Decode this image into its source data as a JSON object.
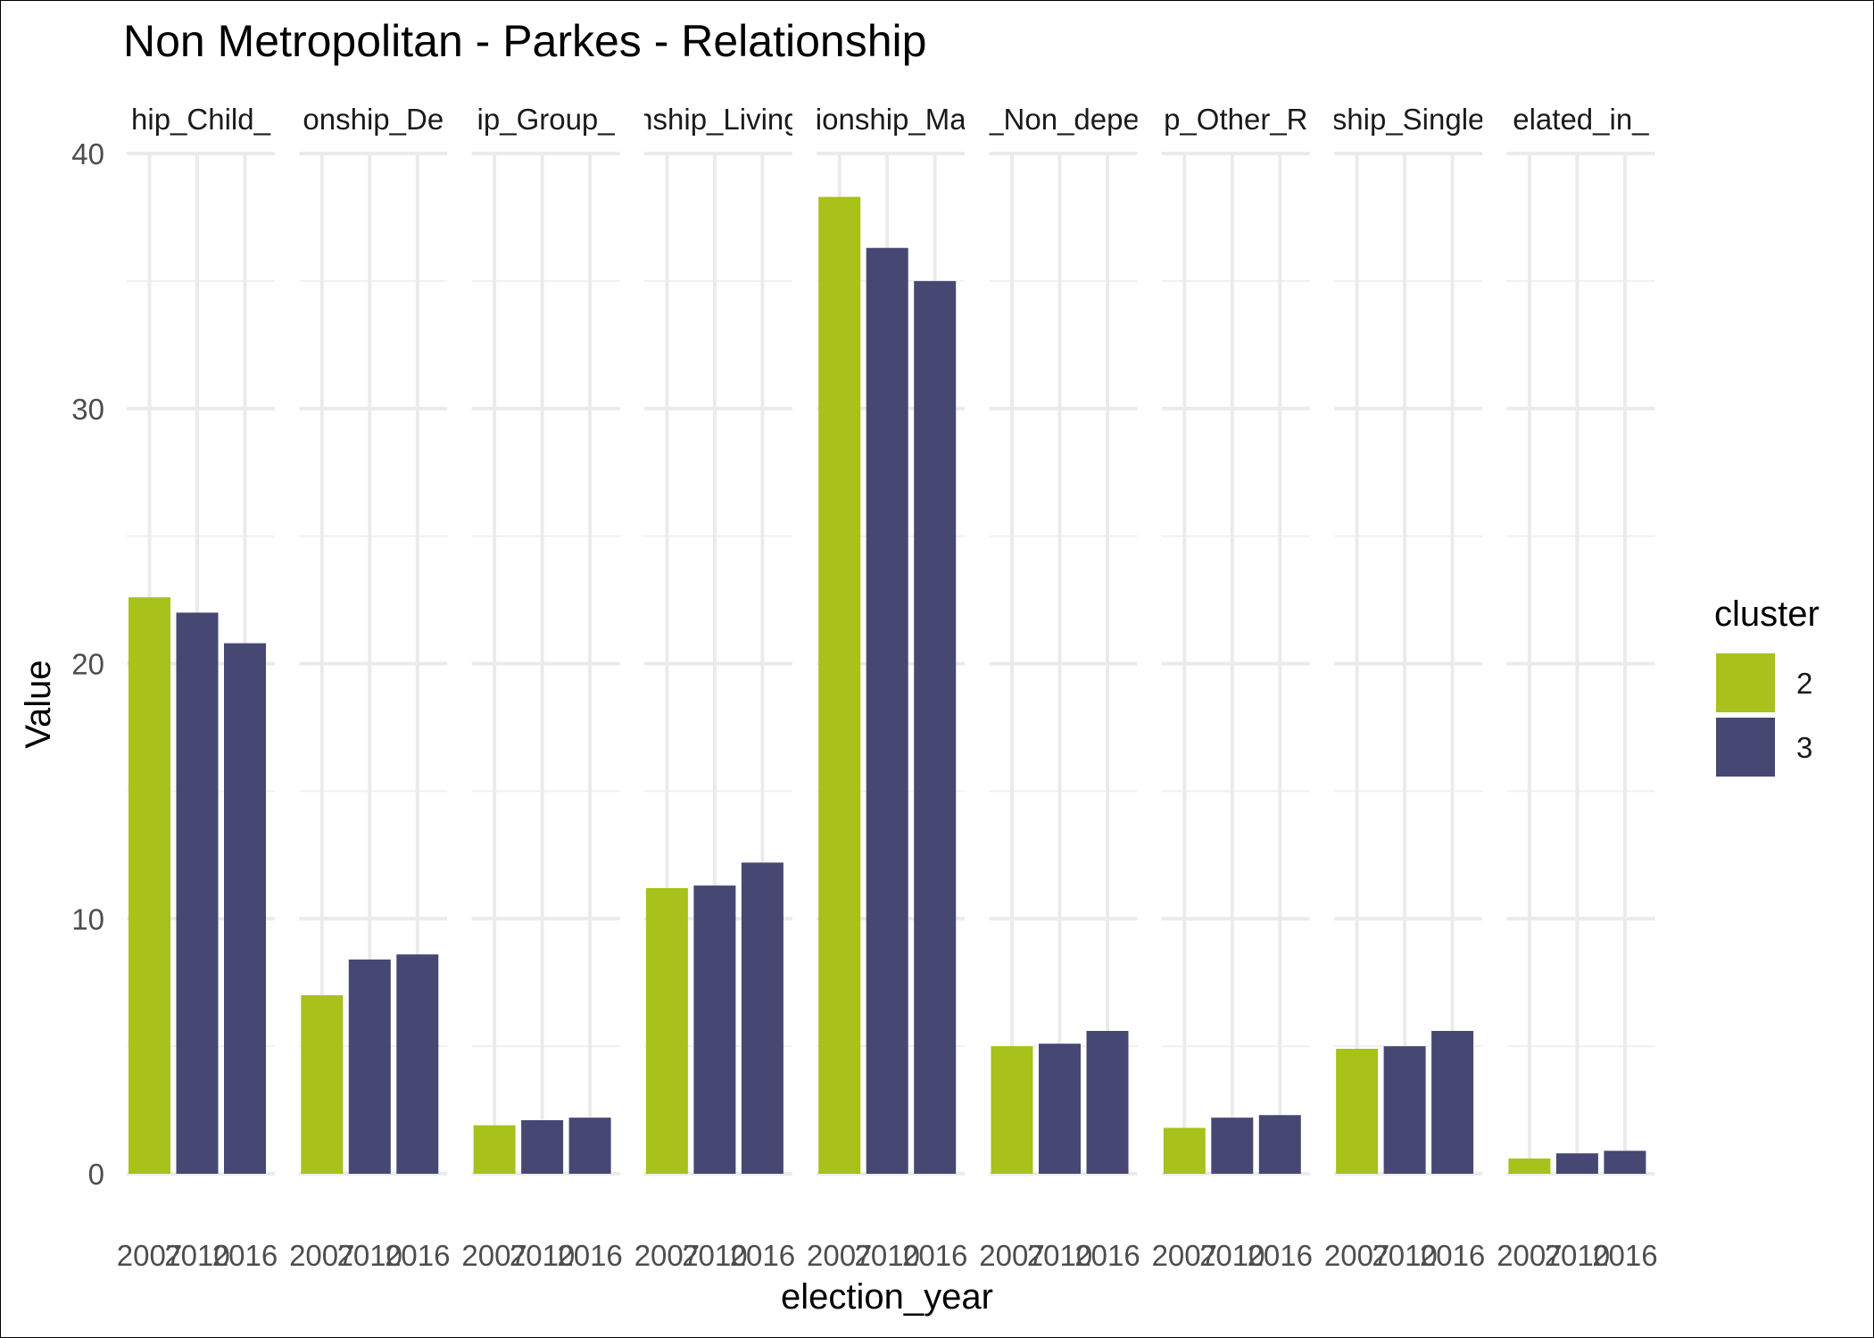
{
  "chart_data": {
    "type": "bar",
    "title": "Non Metropolitan - Parkes - Relationship",
    "xlabel": "election_year",
    "ylabel": "Value",
    "ylim": [
      0,
      40
    ],
    "yticks": [
      0,
      10,
      20,
      30,
      40
    ],
    "x": [
      "2007",
      "2010",
      "2016"
    ],
    "grid": true,
    "legend": {
      "title": "cluster",
      "position": "right",
      "items": [
        {
          "label": "2",
          "color": "#a8c11b"
        },
        {
          "label": "3",
          "color": "#464873"
        }
      ]
    },
    "panels": [
      {
        "label": "hip_Child_",
        "values": [
          22.6,
          22.0,
          20.8
        ],
        "clusters": [
          "2",
          "3",
          "3"
        ]
      },
      {
        "label": "onship_De",
        "values": [
          7.0,
          8.4,
          8.6
        ],
        "clusters": [
          "2",
          "3",
          "3"
        ]
      },
      {
        "label": "ip_Group_",
        "values": [
          1.9,
          2.1,
          2.2
        ],
        "clusters": [
          "2",
          "3",
          "3"
        ]
      },
      {
        "label": "nship_Living",
        "values": [
          11.2,
          11.3,
          12.2
        ],
        "clusters": [
          "2",
          "3",
          "3"
        ]
      },
      {
        "label": "ionship_Ma",
        "values": [
          38.3,
          36.3,
          35.0
        ],
        "clusters": [
          "2",
          "3",
          "3"
        ]
      },
      {
        "label": "_Non_depe",
        "values": [
          5.0,
          5.1,
          5.6
        ],
        "clusters": [
          "2",
          "3",
          "3"
        ]
      },
      {
        "label": "p_Other_R",
        "values": [
          1.8,
          2.2,
          2.3
        ],
        "clusters": [
          "2",
          "3",
          "3"
        ]
      },
      {
        "label": "ship_Single",
        "values": [
          4.9,
          5.0,
          5.6
        ],
        "clusters": [
          "2",
          "3",
          "3"
        ]
      },
      {
        "label": "elated_in_",
        "values": [
          0.6,
          0.8,
          0.9
        ],
        "clusters": [
          "2",
          "3",
          "3"
        ]
      }
    ]
  }
}
